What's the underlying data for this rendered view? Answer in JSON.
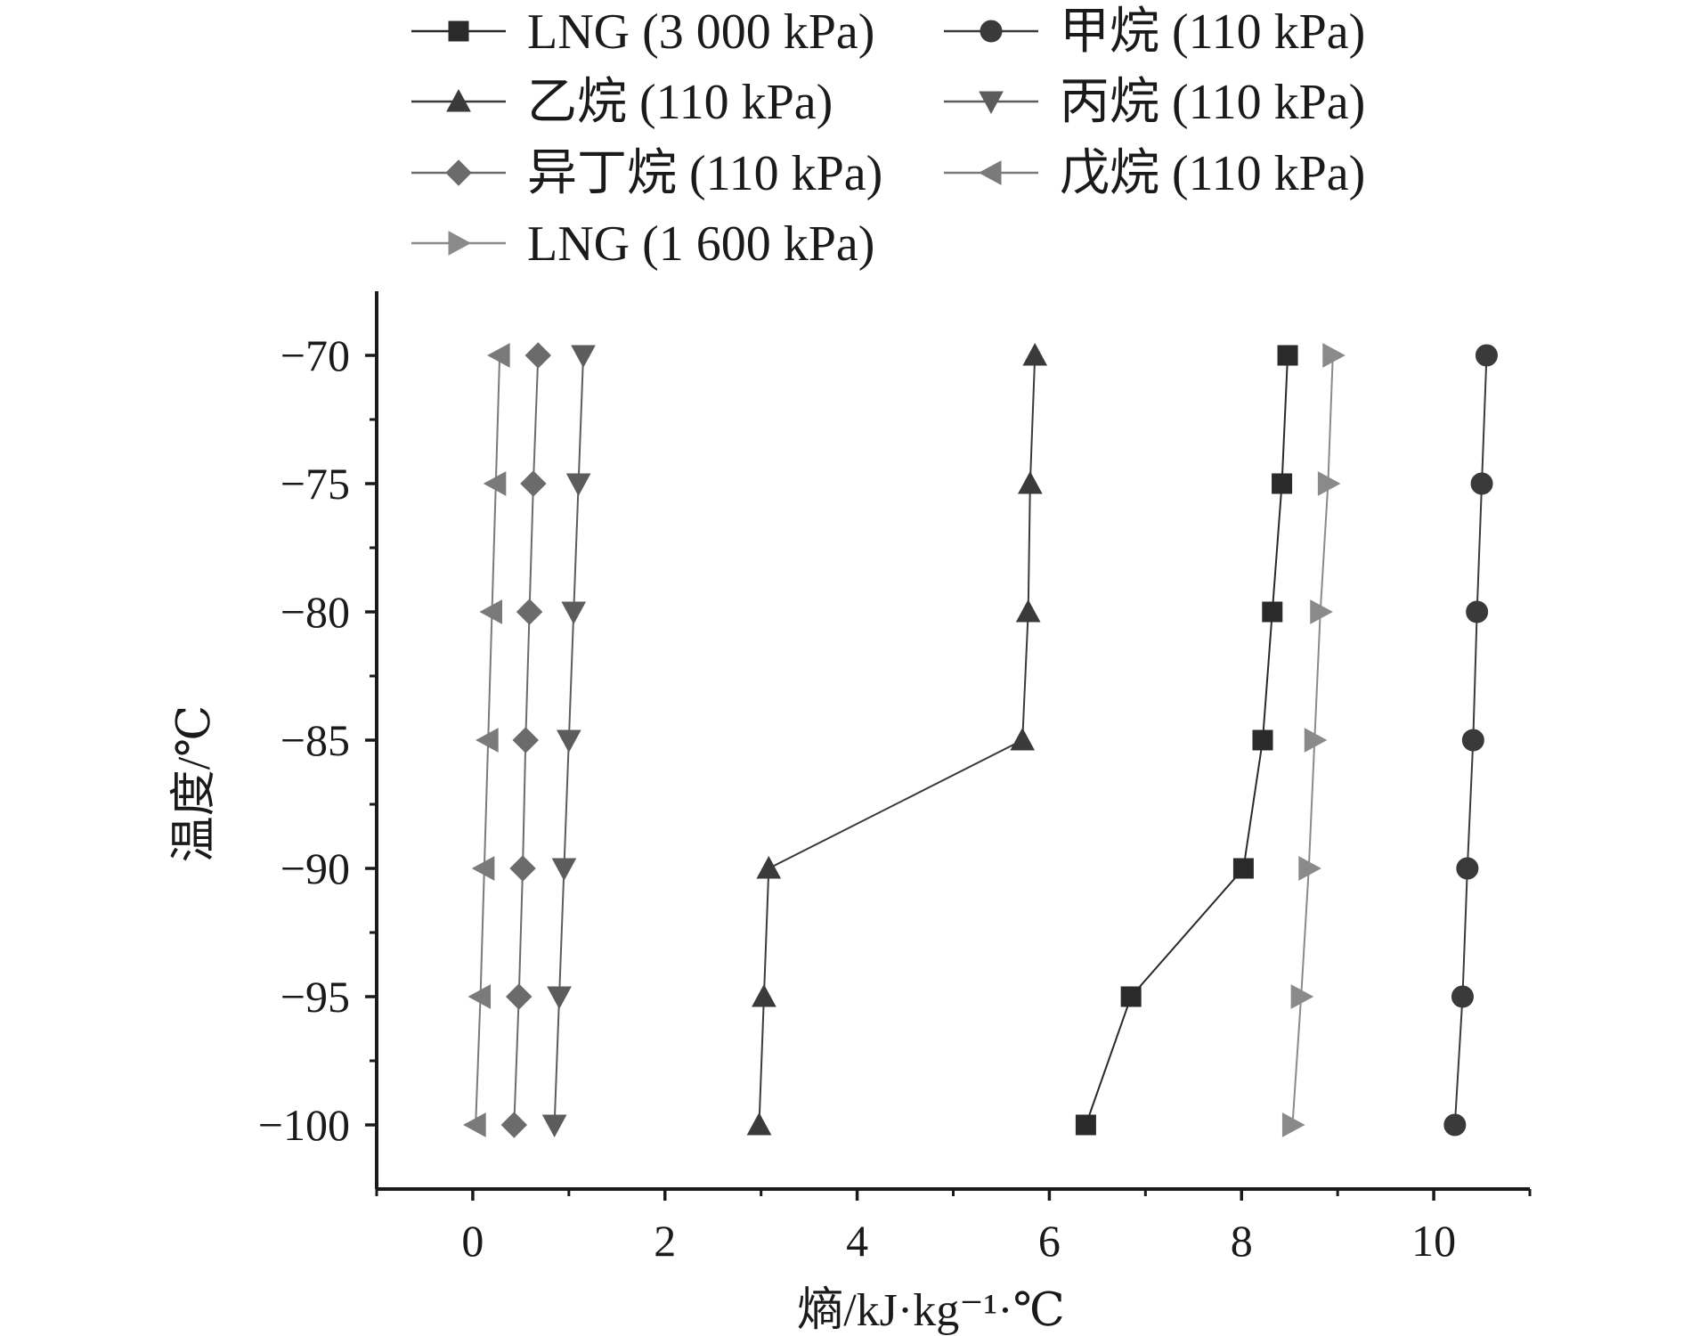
{
  "chart_data": {
    "type": "line",
    "title": "",
    "xlabel": "熵/kJ·kg⁻¹·℃",
    "ylabel": "温度/℃",
    "xlim": [
      -1,
      11
    ],
    "ylim": [
      -102.5,
      -67.5
    ],
    "x_ticks": [
      0,
      2,
      4,
      6,
      8,
      10
    ],
    "y_ticks": [
      -70,
      -75,
      -80,
      -85,
      -90,
      -95,
      -100
    ],
    "y_tick_labels": [
      "−70",
      "−75",
      "−80",
      "−85",
      "−90",
      "−95",
      "−100"
    ],
    "grid": false,
    "legend_position": "top",
    "y": [
      -70,
      -75,
      -80,
      -85,
      -90,
      -95,
      -100
    ],
    "series": [
      {
        "name": "LNG (3 000 kPa)",
        "marker": "square",
        "color": "#2a2a2a",
        "x": [
          8.48,
          8.42,
          8.32,
          8.22,
          8.02,
          6.85,
          6.38
        ]
      },
      {
        "name": "甲烷 (110 kPa)",
        "marker": "circle",
        "color": "#3a3a3a",
        "x": [
          10.55,
          10.5,
          10.45,
          10.41,
          10.35,
          10.3,
          10.22
        ]
      },
      {
        "name": "乙烷 (110 kPa)",
        "marker": "triangle-up",
        "color": "#3a3a3a",
        "x": [
          5.85,
          5.8,
          5.78,
          5.72,
          3.08,
          3.03,
          2.98
        ]
      },
      {
        "name": "丙烷 (110 kPa)",
        "marker": "triangle-down",
        "color": "#5c5c5c",
        "x": [
          1.15,
          1.1,
          1.05,
          1.0,
          0.95,
          0.9,
          0.85
        ]
      },
      {
        "name": "异丁烷 (110 kPa)",
        "marker": "diamond",
        "color": "#6b6b6b",
        "x": [
          0.68,
          0.63,
          0.59,
          0.55,
          0.52,
          0.48,
          0.43
        ]
      },
      {
        "name": "戊烷 (110 kPa)",
        "marker": "triangle-left",
        "color": "#7a7a7a",
        "x": [
          0.28,
          0.24,
          0.2,
          0.16,
          0.12,
          0.08,
          0.03
        ]
      },
      {
        "name": "LNG (1 600 kPa)",
        "marker": "triangle-right",
        "color": "#8a8a8a",
        "x": [
          8.95,
          8.9,
          8.82,
          8.76,
          8.7,
          8.62,
          8.53
        ]
      }
    ]
  }
}
